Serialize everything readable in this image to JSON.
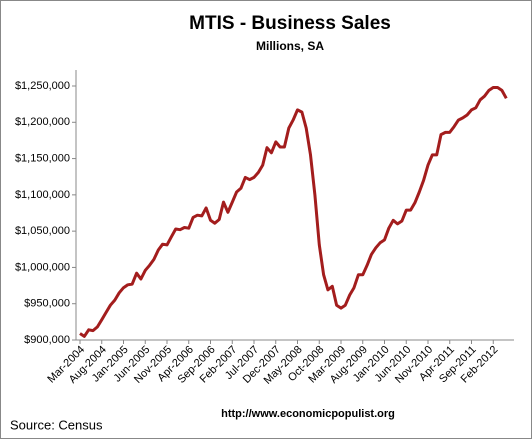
{
  "chart_data": {
    "type": "line",
    "title": "MTIS - Business Sales",
    "subtitle": "Millions, SA",
    "source": "Source:  Census",
    "url": "http://www.economicpopulist.org",
    "categories": [
      "Mar-2004",
      null,
      null,
      null,
      null,
      "Aug-2004",
      null,
      null,
      null,
      null,
      "Jan-2005",
      null,
      null,
      null,
      null,
      "Jun-2005",
      null,
      null,
      null,
      null,
      "Nov-2005",
      null,
      null,
      null,
      null,
      "Apr-2006",
      null,
      null,
      null,
      null,
      "Sep-2006",
      null,
      null,
      null,
      null,
      "Feb-2007",
      null,
      null,
      null,
      null,
      "Jul-2007",
      null,
      null,
      null,
      null,
      "Dec-2007",
      null,
      null,
      null,
      null,
      "May-2008",
      null,
      null,
      null,
      null,
      "Oct-2008",
      null,
      null,
      null,
      null,
      "Mar-2009",
      null,
      null,
      null,
      null,
      "Aug-2009",
      null,
      null,
      null,
      null,
      "Jan-2010",
      null,
      null,
      null,
      null,
      "Jun-2010",
      null,
      null,
      null,
      null,
      "Nov-2010",
      null,
      null,
      null,
      null,
      "Apr-2011",
      null,
      null,
      null,
      null,
      "Sep-2011",
      null,
      null,
      null,
      null,
      "Feb-2012",
      null,
      null,
      null
    ],
    "series": [
      {
        "name": "Business Sales",
        "color": "#a31d1d",
        "values": [
          909000,
          905000,
          914000,
          913000,
          918000,
          928000,
          938000,
          948000,
          955000,
          965000,
          972000,
          976000,
          977000,
          992000,
          984000,
          996000,
          1003000,
          1011000,
          1024000,
          1032000,
          1031000,
          1042000,
          1053000,
          1052000,
          1055000,
          1054000,
          1069000,
          1072000,
          1071000,
          1082000,
          1065000,
          1061000,
          1066000,
          1090000,
          1076000,
          1090000,
          1104000,
          1109000,
          1124000,
          1121000,
          1124000,
          1131000,
          1141000,
          1165000,
          1158000,
          1173000,
          1166000,
          1166000,
          1192000,
          1203000,
          1217000,
          1214000,
          1192000,
          1155000,
          1100000,
          1031000,
          990000,
          969000,
          974000,
          948000,
          944000,
          948000,
          962000,
          972000,
          990000,
          990000,
          1003000,
          1018000,
          1027000,
          1034000,
          1038000,
          1054000,
          1065000,
          1060000,
          1064000,
          1079000,
          1079000,
          1089000,
          1104000,
          1120000,
          1141000,
          1155000,
          1155000,
          1183000,
          1186000,
          1186000,
          1194000,
          1203000,
          1206000,
          1210000,
          1217000,
          1220000,
          1231000,
          1236000,
          1244000,
          1248000,
          1248000,
          1244000,
          1233000
        ]
      }
    ],
    "ylim": [
      900000,
      1250000
    ],
    "yticks": [
      {
        "value": 900000,
        "label": "$900,000"
      },
      {
        "value": 950000,
        "label": "$950,000"
      },
      {
        "value": 1000000,
        "label": "$1,000,000"
      },
      {
        "value": 1050000,
        "label": "$1,050,000"
      },
      {
        "value": 1100000,
        "label": "$1,100,000"
      },
      {
        "value": 1150000,
        "label": "$1,150,000"
      },
      {
        "value": 1200000,
        "label": "$1,200,000"
      },
      {
        "value": 1250000,
        "label": "$1,250,000"
      }
    ],
    "grid": false
  }
}
